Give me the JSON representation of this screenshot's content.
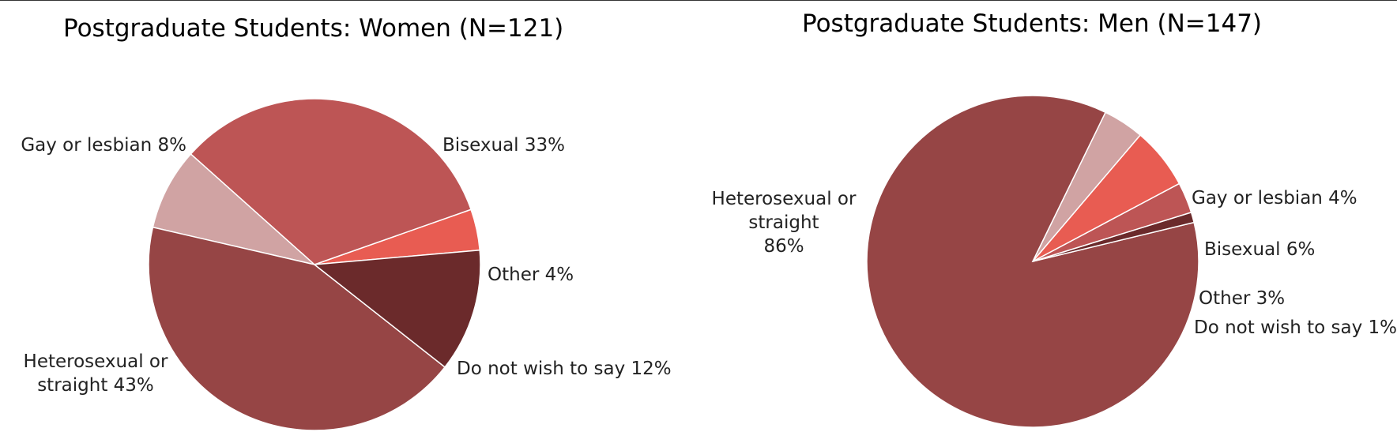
{
  "chart_data": [
    {
      "type": "pie",
      "title": "Postgraduate Students: Women (N=121)",
      "slices": [
        {
          "name": "Other",
          "value": 4,
          "color": "#e85c52",
          "label_lines": [
            "Other 4%"
          ]
        },
        {
          "name": "Bisexual",
          "value": 33,
          "color": "#bd5555",
          "label_lines": [
            "Bisexual 33%"
          ]
        },
        {
          "name": "Gay or lesbian",
          "value": 8,
          "color": "#d0a3a3",
          "label_lines": [
            "Gay or lesbian 8%"
          ]
        },
        {
          "name": "Heterosexual or straight",
          "value": 43,
          "color": "#964545",
          "label_lines": [
            "Heterosexual or",
            "straight 43%"
          ]
        },
        {
          "name": "Do not wish to say",
          "value": 12,
          "color": "#6b2a2b",
          "label_lines": [
            "Do not wish to say 12%"
          ]
        }
      ]
    },
    {
      "type": "pie",
      "title": "Postgraduate Students: Men (N=147)",
      "slices": [
        {
          "name": "Gay or lesbian",
          "value": 4,
          "color": "#d0a3a3",
          "label_lines": [
            "Gay or lesbian 4%"
          ]
        },
        {
          "name": "Heterosexual or straight",
          "value": 86,
          "color": "#964545",
          "label_lines": [
            "Heterosexual or",
            "straight",
            "86%"
          ]
        },
        {
          "name": "Do not wish to say",
          "value": 1,
          "color": "#6b2a2b",
          "label_lines": [
            "Do not wish to say 1%"
          ]
        },
        {
          "name": "Other",
          "value": 3,
          "color": "#bd5555",
          "label_lines": [
            "Other 3%"
          ]
        },
        {
          "name": "Bisexual",
          "value": 6,
          "color": "#e85c52",
          "label_lines": [
            "Bisexual 6%"
          ]
        }
      ]
    }
  ]
}
